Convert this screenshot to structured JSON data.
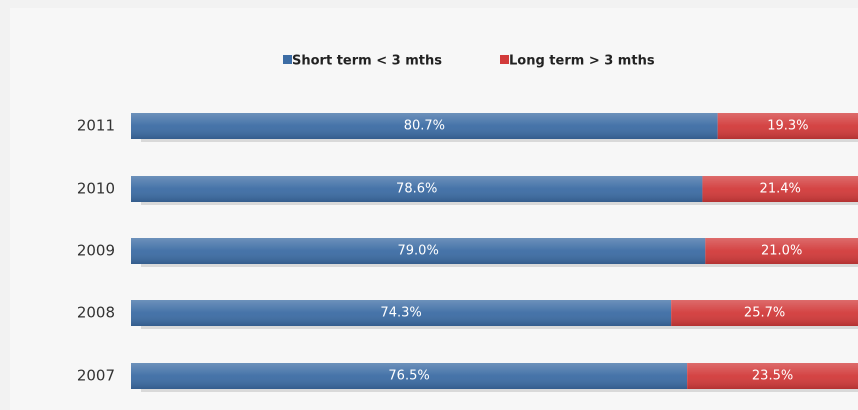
{
  "chart_data": {
    "type": "stacked_bar_horizontal",
    "categories": [
      "2011",
      "2010",
      "2009",
      "2008",
      "2007"
    ],
    "series": [
      {
        "name": "Short term < 3 mths",
        "color": "#3c6ca4",
        "values": [
          80.7,
          78.6,
          79.0,
          74.3,
          76.5
        ],
        "value_labels": [
          "80.7%",
          "78.6%",
          "79.0%",
          "74.3%",
          "76.5%"
        ]
      },
      {
        "name": "Long term > 3 mths",
        "color": "#d23a3a",
        "values": [
          19.3,
          21.4,
          21.0,
          25.7,
          23.5
        ],
        "value_labels": [
          "19.3%",
          "21.4%",
          "21.0%",
          "25.7%",
          "23.5%"
        ]
      }
    ],
    "legend": "top"
  }
}
